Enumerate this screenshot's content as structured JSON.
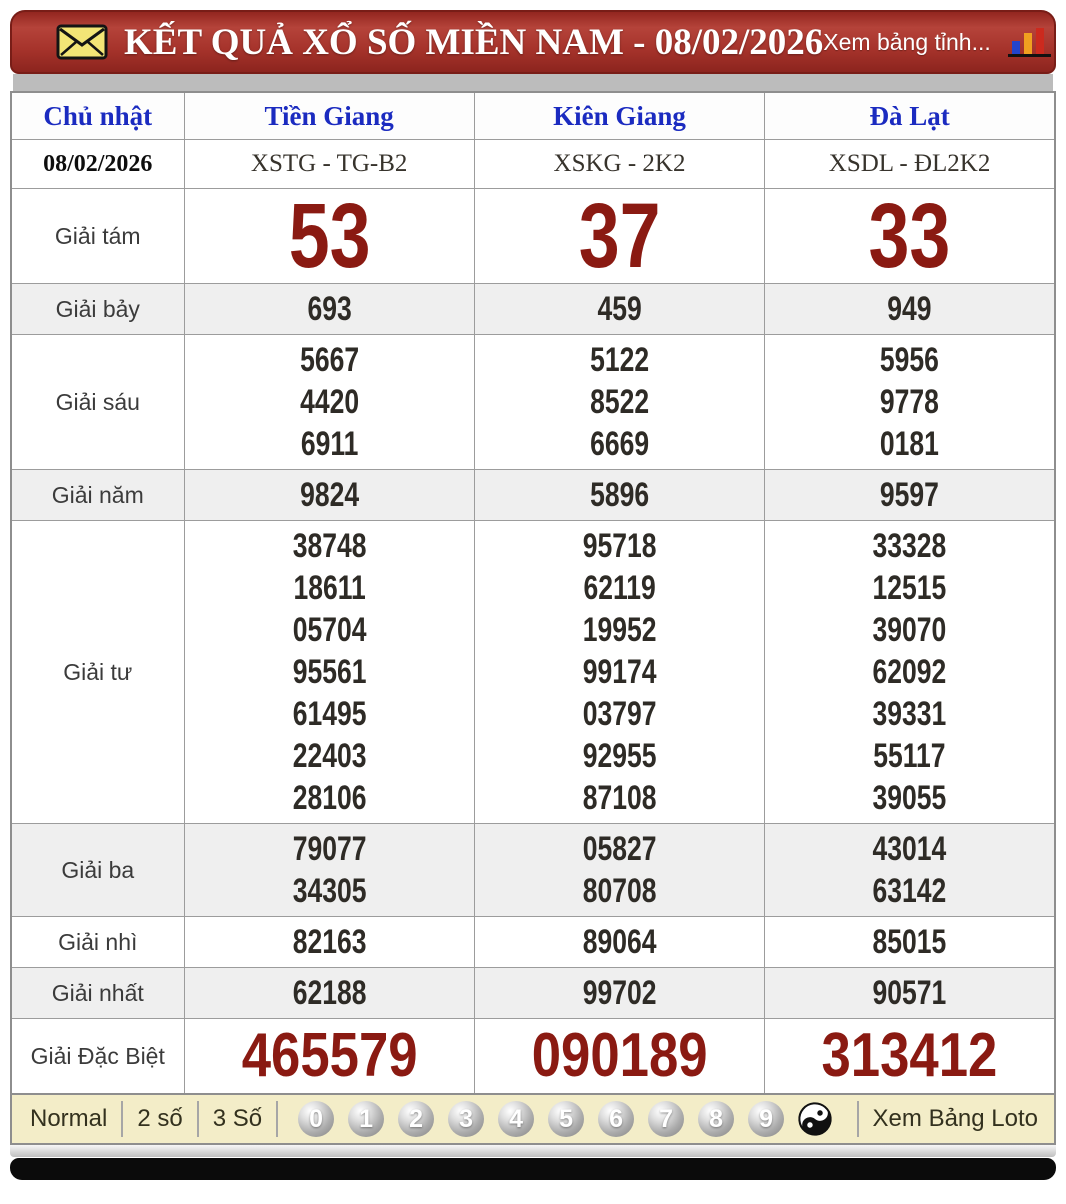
{
  "header": {
    "title": "KẾT QUẢ XỔ SỐ MIỀN NAM - 08/02/2026",
    "link_text": "Xem bảng tỉnh...",
    "left_icon": "envelope-icon",
    "right_icon": "bar-chart-icon"
  },
  "table": {
    "columns": [
      "Chủ nhật",
      "Tiền Giang",
      "Kiên Giang",
      "Đà Lạt"
    ],
    "date": "08/02/2026",
    "station_codes": [
      "XSTG - TG-B2",
      "XSKG - 2K2",
      "XSDL - ĐL2K2"
    ],
    "prizes": [
      {
        "label": "Giải tám",
        "size": "xl",
        "shaded": false,
        "values": [
          [
            "53"
          ],
          [
            "37"
          ],
          [
            "33"
          ]
        ]
      },
      {
        "label": "Giải bảy",
        "shaded": true,
        "values": [
          [
            "693"
          ],
          [
            "459"
          ],
          [
            "949"
          ]
        ]
      },
      {
        "label": "Giải sáu",
        "shaded": false,
        "values": [
          [
            "5667",
            "4420",
            "6911"
          ],
          [
            "5122",
            "8522",
            "6669"
          ],
          [
            "5956",
            "9778",
            "0181"
          ]
        ]
      },
      {
        "label": "Giải năm",
        "shaded": true,
        "values": [
          [
            "9824"
          ],
          [
            "5896"
          ],
          [
            "9597"
          ]
        ]
      },
      {
        "label": "Giải tư",
        "shaded": false,
        "values": [
          [
            "38748",
            "18611",
            "05704",
            "95561",
            "61495",
            "22403",
            "28106"
          ],
          [
            "95718",
            "62119",
            "19952",
            "99174",
            "03797",
            "92955",
            "87108"
          ],
          [
            "33328",
            "12515",
            "39070",
            "62092",
            "39331",
            "55117",
            "39055"
          ]
        ]
      },
      {
        "label": "Giải ba",
        "shaded": true,
        "values": [
          [
            "79077",
            "34305"
          ],
          [
            "05827",
            "80708"
          ],
          [
            "43014",
            "63142"
          ]
        ]
      },
      {
        "label": "Giải nhì",
        "shaded": false,
        "values": [
          [
            "82163"
          ],
          [
            "89064"
          ],
          [
            "85015"
          ]
        ]
      },
      {
        "label": "Giải nhất",
        "shaded": true,
        "values": [
          [
            "62188"
          ],
          [
            "99702"
          ],
          [
            "90571"
          ]
        ]
      },
      {
        "label": "Giải Đặc Biệt",
        "size": "special",
        "shaded": false,
        "values": [
          [
            "465579"
          ],
          [
            "090189"
          ],
          [
            "313412"
          ]
        ]
      }
    ]
  },
  "footer": {
    "mode_buttons": [
      "Normal",
      "2 số",
      "3 Số"
    ],
    "digits": [
      "0",
      "1",
      "2",
      "3",
      "4",
      "5",
      "6",
      "7",
      "8",
      "9"
    ],
    "yinyang_icon": "yin-yang-icon",
    "loto_link": "Xem Bảng Loto"
  },
  "colors": {
    "header_red": "#a6332b",
    "header_border": "#781d17",
    "maroon_number": "#8a1a12",
    "number_dark": "#2e2b26",
    "column_header_blue": "#1b2bc0",
    "shaded_row": "#efefef",
    "footer_cream": "#f3edc8",
    "strip_gray": "#bcbcbc",
    "bottom_black": "#0b0b0b"
  }
}
